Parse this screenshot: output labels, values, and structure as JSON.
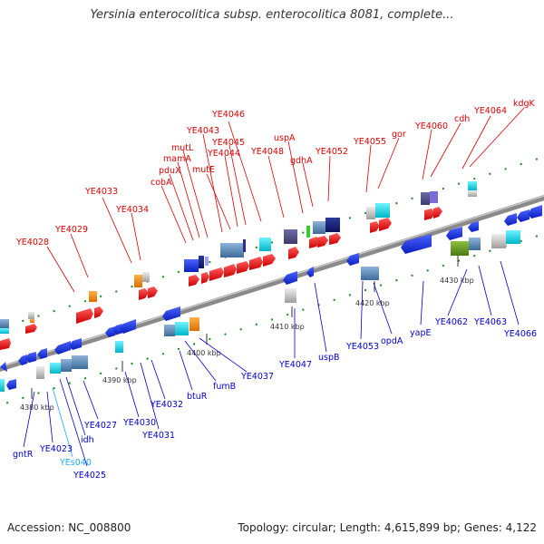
{
  "title": "Yersinia enterocolitica subsp. enterocolitica 8081, complete...",
  "accession_text": "Accession: NC_008800",
  "topology_text": "Topology: circular; Length: 4,615,899 bp; Genes: 4,122",
  "colors": {
    "forward_label": "#dd0000",
    "reverse_label": "#0000cc",
    "rna_label": "#1fa9ff",
    "backbone": "#8a8a8a"
  },
  "scale_labels": [
    "4380 kbp",
    "4390 kbp",
    "4400 kbp",
    "4410 kbp",
    "4420 kbp",
    "4430 kbp"
  ],
  "forward_genes": [
    "YE4028",
    "YE4029",
    "YE4033",
    "YE4034",
    "cobA",
    "pduX",
    "mamA",
    "mutL",
    "YE4043",
    "mutE",
    "YE4044",
    "YE4045",
    "YE4046",
    "YE4048",
    "uspA",
    "gdhA",
    "YE4052",
    "YE4055",
    "gor",
    "YE4060",
    "cdh",
    "YE4064",
    "kdgK"
  ],
  "reverse_genes": [
    "gntR",
    "YE4023",
    "YEs040",
    "YE4025",
    "idh",
    "YE4027",
    "YE4030",
    "YE4031",
    "YE4032",
    "btuR",
    "fumB",
    "YE4037",
    "YE4047",
    "uspB",
    "YE4053",
    "opdA",
    "yapE",
    "YE4062",
    "YE4063",
    "YE4066"
  ]
}
